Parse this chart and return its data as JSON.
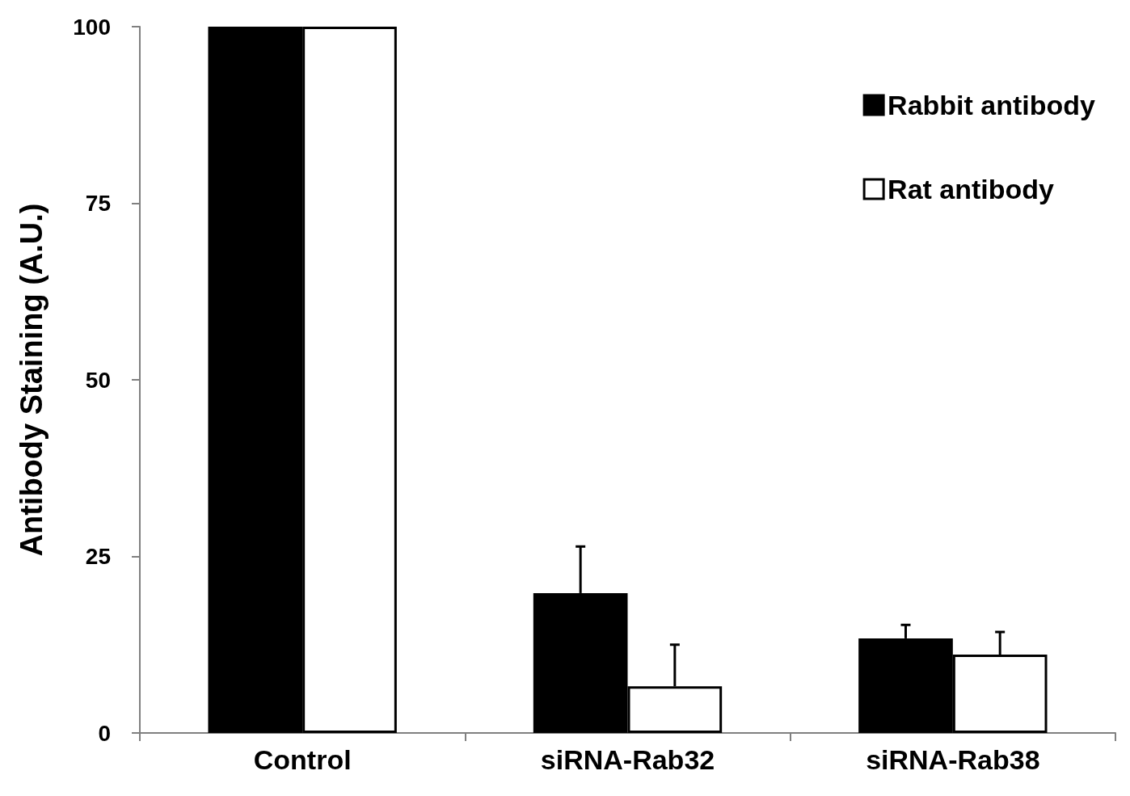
{
  "chart_data": {
    "type": "bar",
    "ylabel": "Antibody Staining (A.U.)",
    "categories": [
      "Control",
      "siRNA-Rab32",
      "siRNA-Rab38"
    ],
    "series": [
      {
        "name": "Rabbit antibody",
        "color": "#000000",
        "values": [
          100,
          19.8,
          13.4
        ],
        "errors": [
          null,
          [
            19.8,
            26.4
          ],
          [
            13.4,
            15.3
          ]
        ]
      },
      {
        "name": "Rat antibody",
        "color": "#ffffff",
        "values": [
          100,
          6.6,
          11.1
        ],
        "errors": [
          null,
          [
            6.6,
            12.5
          ],
          [
            11.1,
            14.3
          ]
        ]
      }
    ],
    "ylim": [
      0,
      100
    ],
    "yticks": [
      0,
      25,
      50,
      75,
      100
    ],
    "grid": false,
    "legend": "top right"
  }
}
